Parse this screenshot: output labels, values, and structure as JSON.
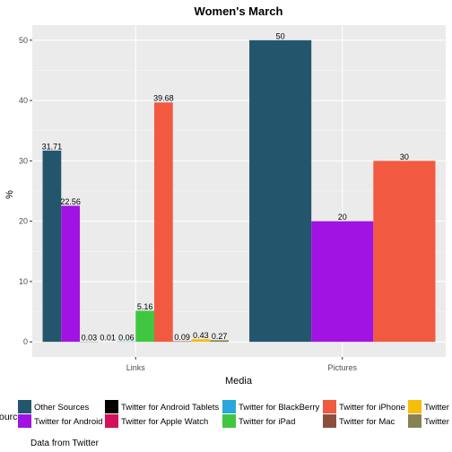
{
  "chart_data": {
    "type": "bar",
    "title": "Women's March",
    "xlabel": "Media",
    "ylabel": "%",
    "caption": "Data from Twitter",
    "legend_title": "Source",
    "legend_position": "bottom",
    "ylim": [
      -2.5,
      52.5
    ],
    "yticks": [
      0,
      10,
      20,
      30,
      40,
      50
    ],
    "grid": true,
    "categories": [
      "Links",
      "Pictures"
    ],
    "series": [
      {
        "name": "Other Sources",
        "color": "#23566d",
        "values": [
          31.71,
          50
        ]
      },
      {
        "name": "Twitter for Android",
        "color": "#a113e2",
        "values": [
          22.56,
          20
        ]
      },
      {
        "name": "Twitter for Android Tablets",
        "color": "#000000",
        "values": [
          0.03,
          null
        ]
      },
      {
        "name": "Twitter for Apple Watch",
        "color": "#d3105c",
        "values": [
          0.01,
          null
        ]
      },
      {
        "name": "Twitter for BlackBerry",
        "color": "#2ba7df",
        "values": [
          0.06,
          null
        ]
      },
      {
        "name": "Twitter for iPad",
        "color": "#40c640",
        "values": [
          5.16,
          null
        ]
      },
      {
        "name": "Twitter for iPhone",
        "color": "#f15a40",
        "values": [
          39.68,
          30
        ]
      },
      {
        "name": "Twitter for Mac",
        "color": "#8c4f3f",
        "values": [
          0.09,
          null
        ]
      },
      {
        "name": "Twitter",
        "color": "#f6bd0a",
        "values": [
          0.43,
          null
        ]
      },
      {
        "name": "Twitter",
        "color": "#878253",
        "values": [
          0.27,
          null
        ]
      }
    ]
  }
}
